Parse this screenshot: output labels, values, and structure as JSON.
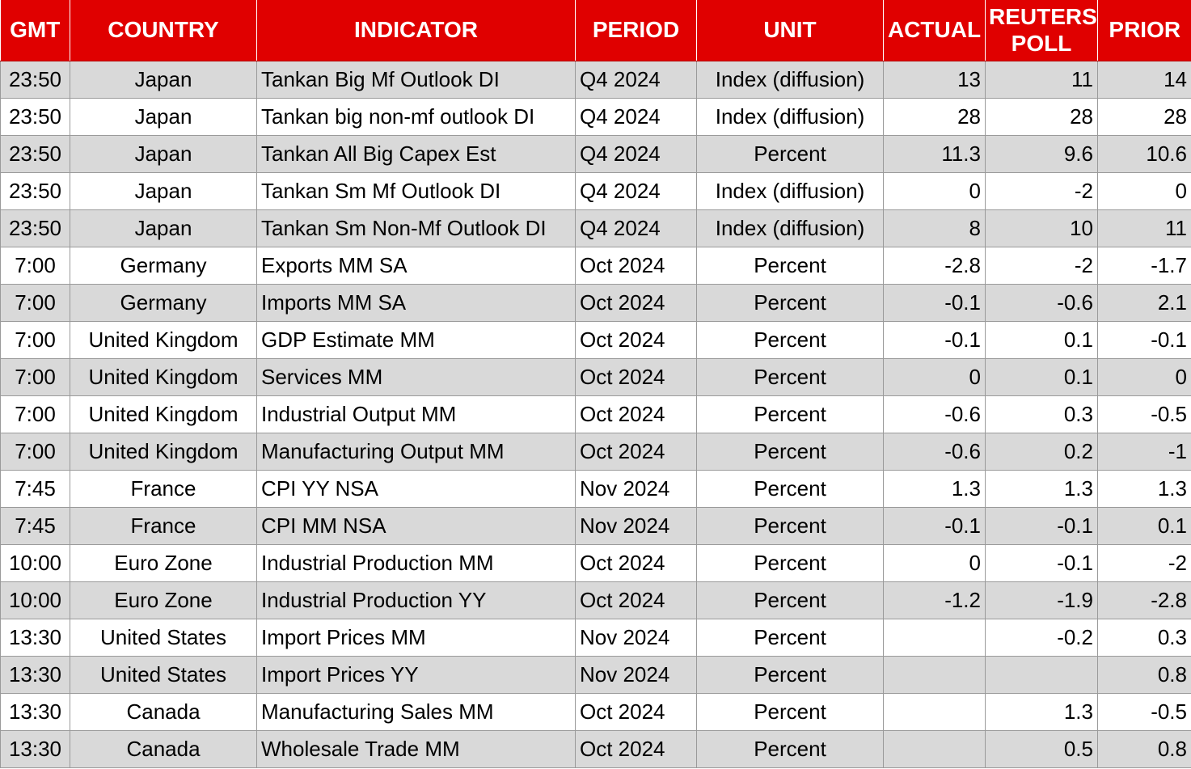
{
  "headers": {
    "gmt": "GMT",
    "country": "COUNTRY",
    "indicator": "INDICATOR",
    "period": "PERIOD",
    "unit": "UNIT",
    "actual": "ACTUAL",
    "poll_line1": "REUTERS",
    "poll_line2": "POLL",
    "prior": "PRIOR"
  },
  "colors": {
    "header_bg": "#e00000",
    "header_text": "#ffffff",
    "row_shaded": "#d9d9d9",
    "row_plain": "#ffffff"
  },
  "rows": [
    {
      "gmt": "23:50",
      "country": "Japan",
      "indicator": "Tankan Big Mf Outlook DI",
      "period": "Q4 2024",
      "unit": "Index (diffusion)",
      "actual": "13",
      "poll": "11",
      "prior": "14"
    },
    {
      "gmt": "23:50",
      "country": "Japan",
      "indicator": "Tankan big non-mf outlook DI",
      "period": "Q4 2024",
      "unit": "Index (diffusion)",
      "actual": "28",
      "poll": "28",
      "prior": "28"
    },
    {
      "gmt": "23:50",
      "country": "Japan",
      "indicator": "Tankan All Big Capex Est",
      "period": "Q4 2024",
      "unit": "Percent",
      "actual": "11.3",
      "poll": "9.6",
      "prior": "10.6"
    },
    {
      "gmt": "23:50",
      "country": "Japan",
      "indicator": "Tankan Sm Mf Outlook DI",
      "period": "Q4 2024",
      "unit": "Index (diffusion)",
      "actual": "0",
      "poll": "-2",
      "prior": "0"
    },
    {
      "gmt": "23:50",
      "country": "Japan",
      "indicator": "Tankan Sm Non-Mf Outlook DI",
      "period": "Q4 2024",
      "unit": "Index (diffusion)",
      "actual": "8",
      "poll": "10",
      "prior": "11"
    },
    {
      "gmt": "7:00",
      "country": "Germany",
      "indicator": "Exports MM SA",
      "period": "Oct 2024",
      "unit": "Percent",
      "actual": "-2.8",
      "poll": "-2",
      "prior": "-1.7"
    },
    {
      "gmt": "7:00",
      "country": "Germany",
      "indicator": "Imports MM SA",
      "period": "Oct 2024",
      "unit": "Percent",
      "actual": "-0.1",
      "poll": "-0.6",
      "prior": "2.1"
    },
    {
      "gmt": "7:00",
      "country": "United Kingdom",
      "indicator": "GDP Estimate MM",
      "period": "Oct 2024",
      "unit": "Percent",
      "actual": "-0.1",
      "poll": "0.1",
      "prior": "-0.1"
    },
    {
      "gmt": "7:00",
      "country": "United Kingdom",
      "indicator": "Services MM",
      "period": "Oct 2024",
      "unit": "Percent",
      "actual": "0",
      "poll": "0.1",
      "prior": "0"
    },
    {
      "gmt": "7:00",
      "country": "United Kingdom",
      "indicator": "Industrial Output MM",
      "period": "Oct 2024",
      "unit": "Percent",
      "actual": "-0.6",
      "poll": "0.3",
      "prior": "-0.5"
    },
    {
      "gmt": "7:00",
      "country": "United Kingdom",
      "indicator": "Manufacturing Output MM",
      "period": "Oct 2024",
      "unit": "Percent",
      "actual": "-0.6",
      "poll": "0.2",
      "prior": "-1"
    },
    {
      "gmt": "7:45",
      "country": "France",
      "indicator": "CPI YY NSA",
      "period": "Nov 2024",
      "unit": "Percent",
      "actual": "1.3",
      "poll": "1.3",
      "prior": "1.3"
    },
    {
      "gmt": "7:45",
      "country": "France",
      "indicator": "CPI MM NSA",
      "period": "Nov 2024",
      "unit": "Percent",
      "actual": "-0.1",
      "poll": "-0.1",
      "prior": "0.1"
    },
    {
      "gmt": "10:00",
      "country": "Euro Zone",
      "indicator": "Industrial Production MM",
      "period": "Oct 2024",
      "unit": "Percent",
      "actual": "0",
      "poll": "-0.1",
      "prior": "-2"
    },
    {
      "gmt": "10:00",
      "country": "Euro Zone",
      "indicator": "Industrial Production YY",
      "period": "Oct 2024",
      "unit": "Percent",
      "actual": "-1.2",
      "poll": "-1.9",
      "prior": "-2.8"
    },
    {
      "gmt": "13:30",
      "country": "United States",
      "indicator": "Import Prices MM",
      "period": "Nov 2024",
      "unit": "Percent",
      "actual": "",
      "poll": "-0.2",
      "prior": "0.3"
    },
    {
      "gmt": "13:30",
      "country": "United States",
      "indicator": "Import Prices YY",
      "period": "Nov 2024",
      "unit": "Percent",
      "actual": "",
      "poll": "",
      "prior": "0.8"
    },
    {
      "gmt": "13:30",
      "country": "Canada",
      "indicator": "Manufacturing Sales MM",
      "period": "Oct 2024",
      "unit": "Percent",
      "actual": "",
      "poll": "1.3",
      "prior": "-0.5"
    },
    {
      "gmt": "13:30",
      "country": "Canada",
      "indicator": "Wholesale Trade MM",
      "period": "Oct 2024",
      "unit": "Percent",
      "actual": "",
      "poll": "0.5",
      "prior": "0.8"
    }
  ]
}
